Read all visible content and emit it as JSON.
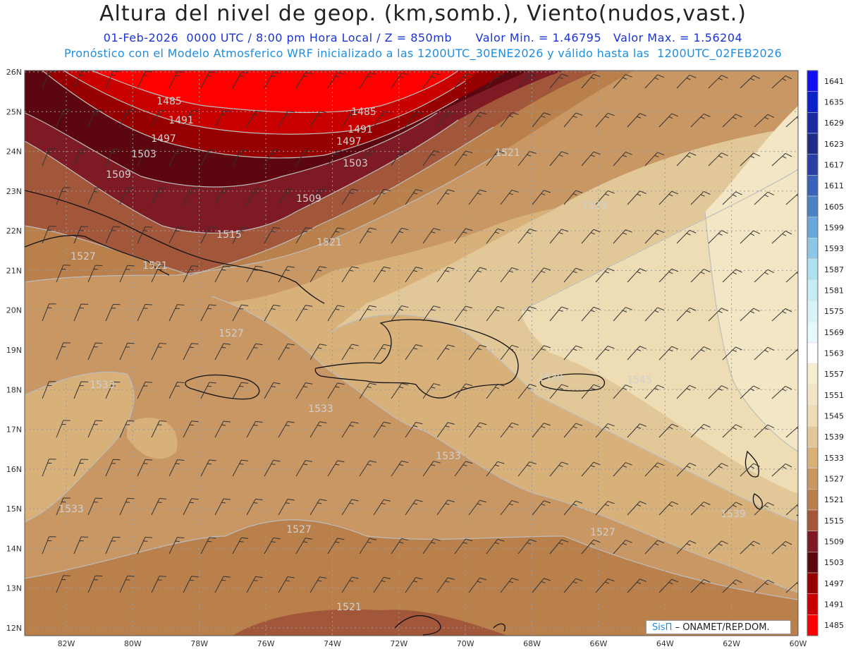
{
  "header": {
    "title": "Altura del nivel de geop. (km,somb.), Viento(nudos,vast.)",
    "date_line": "01-Feb-2026  0000 UTC / 8:00 pm Hora Local / Z = 850mb",
    "min_line": "Valor Min. = 1.46795",
    "max_line": "Valor Max. = 1.56204",
    "model_line": "Pronóstico con el Modelo Atmosferico WRF inicializado a las 1200UTC_30ENE2026 y válido hasta las  1200UTC_02FEB2026"
  },
  "map": {
    "lat_labels": [
      "26N",
      "25N",
      "24N",
      "23N",
      "22N",
      "21N",
      "20N",
      "19N",
      "18N",
      "17N",
      "16N",
      "15N",
      "14N",
      "13N",
      "12N"
    ],
    "lon_labels": [
      "82W",
      "80W",
      "78W",
      "76W",
      "74W",
      "72W",
      "70W",
      "68W",
      "66W",
      "64W",
      "62W",
      "60W"
    ],
    "contour_labels": [
      {
        "text": "1485"
      },
      {
        "text": "1485"
      },
      {
        "text": "1491"
      },
      {
        "text": "1491"
      },
      {
        "text": "1497"
      },
      {
        "text": "1497"
      },
      {
        "text": "1503"
      },
      {
        "text": "1503"
      },
      {
        "text": "1509"
      },
      {
        "text": "1509"
      },
      {
        "text": "1515"
      },
      {
        "text": "1521"
      },
      {
        "text": "1521"
      },
      {
        "text": "1521"
      },
      {
        "text": "1527"
      },
      {
        "text": "1527"
      },
      {
        "text": "1527"
      },
      {
        "text": "1533"
      },
      {
        "text": "1533"
      },
      {
        "text": "1533"
      },
      {
        "text": "1533"
      },
      {
        "text": "1539"
      },
      {
        "text": "1539"
      },
      {
        "text": "1539"
      },
      {
        "text": "1545"
      },
      {
        "text": "1521"
      },
      {
        "text": "1527"
      }
    ],
    "credit_brand": "SisΠ",
    "credit_text": "– ONAMET/REP.DOM."
  },
  "colorbar": {
    "levels": [
      "1641",
      "1635",
      "1629",
      "1623",
      "1617",
      "1611",
      "1605",
      "1599",
      "1593",
      "1587",
      "1581",
      "1575",
      "1569",
      "1563",
      "1557",
      "1551",
      "1545",
      "1539",
      "1533",
      "1527",
      "1521",
      "1515",
      "1509",
      "1503",
      "1497",
      "1491",
      "1485"
    ],
    "colors": [
      "#1010f0",
      "#0a22c8",
      "#1a2aa0",
      "#1e2c88",
      "#2a3fa4",
      "#3a62b8",
      "#4a82c4",
      "#6aa6d8",
      "#8ec6e6",
      "#aee0ee",
      "#c6ecf4",
      "#d8f4f8",
      "#e6f9fc",
      "#ffffff",
      "#f6eed0",
      "#f2e6c4",
      "#eddcb4",
      "#e2c898",
      "#d7b07a",
      "#c99764",
      "#b9804c",
      "#a2573a",
      "#7d1a24",
      "#5c0610",
      "#960000",
      "#c80000",
      "#ff0000"
    ]
  }
}
